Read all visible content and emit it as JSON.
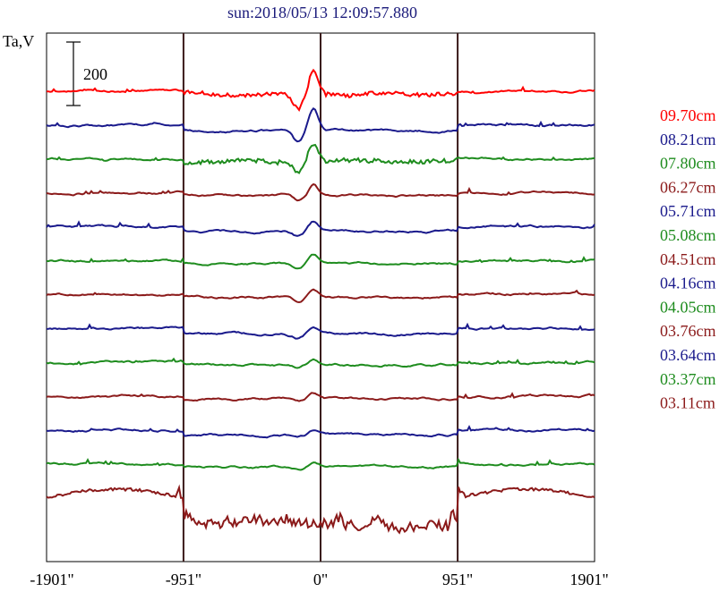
{
  "chart_data": {
    "type": "line",
    "title": "sun:2018/05/13 12:09:57.880",
    "ylabel": "Ta,V",
    "xlabel": "",
    "xlim": [
      -1901,
      1901
    ],
    "x_ticks": [
      {
        "value": -1901,
        "label": "-1901\""
      },
      {
        "value": -951,
        "label": "-951\""
      },
      {
        "value": 0,
        "label": "0\""
      },
      {
        "value": 951,
        "label": "951\""
      },
      {
        "value": 1901,
        "label": "1901\""
      }
    ],
    "vertical_lines": [
      -951,
      0,
      951
    ],
    "scale_bar": {
      "value": 200,
      "label": "200"
    },
    "grid": false,
    "legend_position": "right",
    "series": [
      {
        "name": "09.70cm",
        "color": "#ff0000",
        "style": "limb"
      },
      {
        "name": "08.21cm",
        "color": "#1a1a8c",
        "style": "disk_deep"
      },
      {
        "name": "07.80cm",
        "color": "#1e8c1e",
        "style": "limb"
      },
      {
        "name": "06.27cm",
        "color": "#8b1a1a",
        "style": "flat"
      },
      {
        "name": "05.71cm",
        "color": "#1a1a8c",
        "style": "disk"
      },
      {
        "name": "05.08cm",
        "color": "#1e8c1e",
        "style": "flat"
      },
      {
        "name": "04.51cm",
        "color": "#8b1a1a",
        "style": "flat"
      },
      {
        "name": "04.16cm",
        "color": "#1a1a8c",
        "style": "disk_deep"
      },
      {
        "name": "04.05cm",
        "color": "#1e8c1e",
        "style": "flat"
      },
      {
        "name": "03.76cm",
        "color": "#8b1a1a",
        "style": "flat"
      },
      {
        "name": "03.64cm",
        "color": "#1a1a8c",
        "style": "disk"
      },
      {
        "name": "03.37cm",
        "color": "#1e8c1e",
        "style": "flat"
      },
      {
        "name": "03.11cm",
        "color": "#8b1a1a",
        "style": "limb_strong"
      }
    ]
  }
}
